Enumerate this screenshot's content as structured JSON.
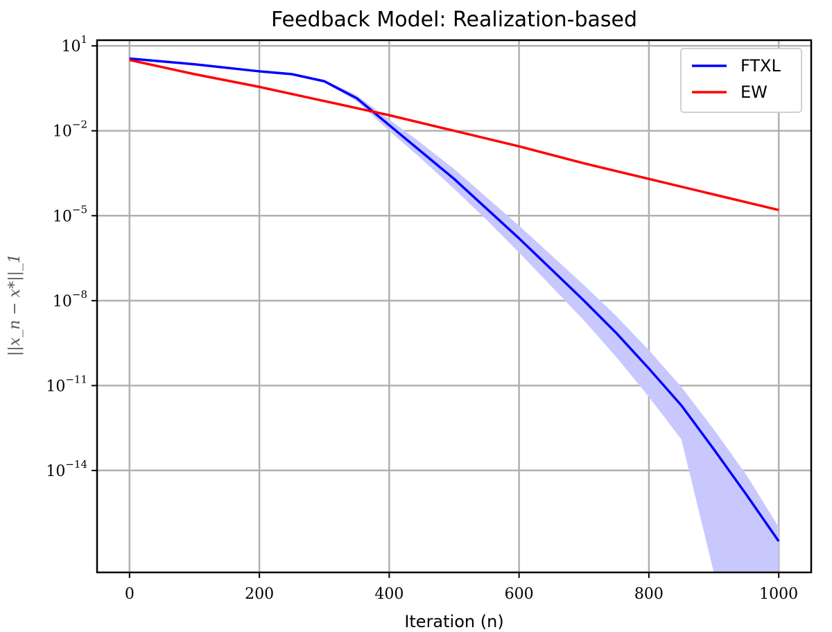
{
  "chart_data": {
    "type": "line",
    "title": "Feedback Model: Realization-based",
    "xlabel": "Iteration (n)",
    "ylabel": "||x_n − x*||_1",
    "xlim": [
      -50,
      1050
    ],
    "ylog10_lim": [
      -17.6,
      1.2
    ],
    "yscale": "log",
    "grid": true,
    "legend_position": "top-right",
    "x_ticks": [
      "0",
      "200",
      "400",
      "600",
      "800",
      "1000"
    ],
    "x_tick_values": [
      0,
      200,
      400,
      600,
      800,
      1000
    ],
    "y_ticks": [
      {
        "base": "10",
        "exp": "1",
        "value": 1
      },
      {
        "base": "10",
        "exp": "−2",
        "value": -2
      },
      {
        "base": "10",
        "exp": "−5",
        "value": -5
      },
      {
        "base": "10",
        "exp": "−8",
        "value": -8
      },
      {
        "base": "10",
        "exp": "−11",
        "value": -11
      },
      {
        "base": "10",
        "exp": "−14",
        "value": -14
      }
    ],
    "series": [
      {
        "name": "FTXL",
        "color": "#0000ff",
        "x": [
          0,
          100,
          200,
          250,
          300,
          350,
          400,
          450,
          500,
          550,
          600,
          650,
          700,
          750,
          800,
          850,
          900,
          950,
          1000
        ],
        "log10_y": [
          0.55,
          0.35,
          0.1,
          0.0,
          -0.25,
          -0.85,
          -1.8,
          -2.75,
          -3.7,
          -4.75,
          -5.8,
          -6.9,
          -8.0,
          -9.15,
          -10.4,
          -11.7,
          -13.25,
          -14.85,
          -16.5
        ],
        "band_upper": [
          0.57,
          0.37,
          0.12,
          0.02,
          -0.2,
          -0.75,
          -1.6,
          -2.45,
          -3.35,
          -4.35,
          -5.35,
          -6.4,
          -7.45,
          -8.55,
          -9.75,
          -11.05,
          -12.55,
          -14.15,
          -16.0
        ],
        "band_lower": [
          0.53,
          0.33,
          0.08,
          -0.02,
          -0.3,
          -0.95,
          -2.0,
          -3.0,
          -4.05,
          -5.15,
          -6.3,
          -7.5,
          -8.7,
          -10.0,
          -11.4,
          -12.9,
          -17.6,
          -17.6,
          -17.6
        ],
        "color_band": "#c8c8ff"
      },
      {
        "name": "EW",
        "color": "#ff0000",
        "x": [
          0,
          100,
          200,
          300,
          400,
          500,
          600,
          700,
          800,
          900,
          1000
        ],
        "log10_y": [
          0.5,
          0.0,
          -0.45,
          -0.95,
          -1.45,
          -2.0,
          -2.55,
          -3.15,
          -3.7,
          -4.25,
          -4.8
        ]
      }
    ]
  }
}
